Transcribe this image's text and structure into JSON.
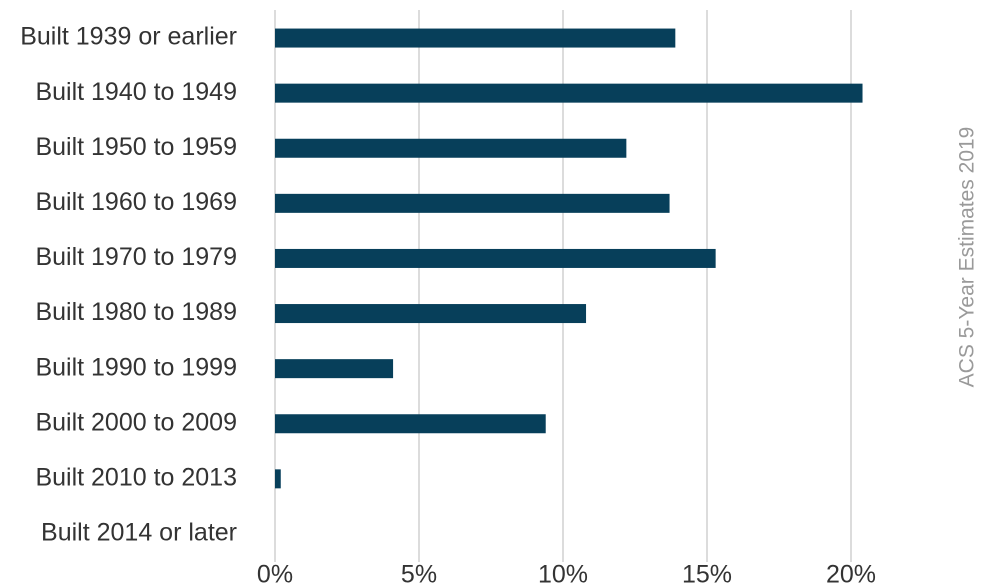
{
  "chart_data": {
    "type": "bar",
    "orientation": "horizontal",
    "categories": [
      "Built 1939 or earlier",
      "Built 1940 to 1949",
      "Built 1950 to 1959",
      "Built 1960 to 1969",
      "Built 1970 to 1979",
      "Built 1980 to 1989",
      "Built 1990 to 1999",
      "Built 2000 to 2009",
      "Built 2010 to 2013",
      "Built 2014 or later"
    ],
    "values": [
      13.9,
      20.4,
      12.2,
      13.7,
      15.3,
      10.8,
      4.1,
      9.4,
      0.2,
      0
    ],
    "color": "#073f5a",
    "xlim": [
      0,
      21
    ],
    "xticks": [
      {
        "value": 0,
        "label": "0%"
      },
      {
        "value": 5,
        "label": "5%"
      },
      {
        "value": 10,
        "label": "10%"
      },
      {
        "value": 15,
        "label": "15%"
      },
      {
        "value": 20,
        "label": "20%"
      }
    ],
    "grid": true,
    "source": "ACS 5-Year Estimates 2019"
  }
}
